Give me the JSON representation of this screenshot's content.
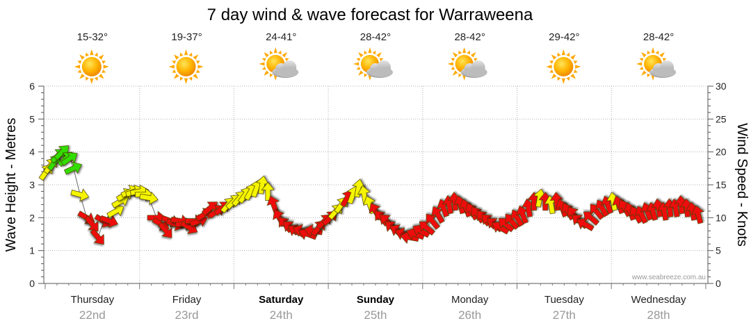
{
  "chart_data": {
    "type": "line",
    "title": "7 day wind & wave forecast for Warraweena",
    "ylabel_left": "Wave Height - Metres",
    "ylabel_right": "Wind Speed - Knots",
    "ylim_left": [
      0,
      6
    ],
    "ylim_right": [
      0,
      30
    ],
    "yticks_left": [
      "0",
      "1",
      "2",
      "3",
      "4",
      "5",
      "6"
    ],
    "yticks_right": [
      "0",
      "5",
      "10",
      "15",
      "20",
      "25",
      "30"
    ],
    "watermark": "www.seabreeze.com.au",
    "days": [
      {
        "name": "Thursday",
        "date": "22nd",
        "temp": "15-32°",
        "weather": "sunny",
        "bold": false
      },
      {
        "name": "Friday",
        "date": "23rd",
        "temp": "19-37°",
        "weather": "sunny",
        "bold": false
      },
      {
        "name": "Saturday",
        "date": "24th",
        "temp": "24-41°",
        "weather": "partly-cloudy",
        "bold": true
      },
      {
        "name": "Sunday",
        "date": "25th",
        "temp": "28-42°",
        "weather": "partly-cloudy",
        "bold": true
      },
      {
        "name": "Monday",
        "date": "26th",
        "temp": "28-42°",
        "weather": "partly-cloudy",
        "bold": false
      },
      {
        "name": "Tuesday",
        "date": "27th",
        "temp": "29-42°",
        "weather": "sunny",
        "bold": false
      },
      {
        "name": "Wednesday",
        "date": "28th",
        "temp": "28-42°",
        "weather": "partly-cloudy",
        "bold": false
      }
    ],
    "wind_unit": "knots",
    "wind_series": [
      {
        "t": 0.01,
        "kn": 17.0,
        "dir": 215,
        "color": "yellow"
      },
      {
        "t": 0.06,
        "kn": 18.0,
        "dir": 215,
        "color": "yellow"
      },
      {
        "t": 0.1,
        "kn": 18.5,
        "dir": 215,
        "color": "green"
      },
      {
        "t": 0.14,
        "kn": 19.5,
        "dir": 225,
        "color": "green"
      },
      {
        "t": 0.18,
        "kn": 20.0,
        "dir": 225,
        "color": "green"
      },
      {
        "t": 0.22,
        "kn": 19.0,
        "dir": 225,
        "color": "green"
      },
      {
        "t": 0.26,
        "kn": 19.0,
        "dir": 235,
        "color": "green"
      },
      {
        "t": 0.3,
        "kn": 17.5,
        "dir": 245,
        "color": "green"
      },
      {
        "t": 0.37,
        "kn": 13.5,
        "dir": 285,
        "color": "yellow"
      },
      {
        "t": 0.44,
        "kn": 10.0,
        "dir": 300,
        "color": "red"
      },
      {
        "t": 0.5,
        "kn": 9.0,
        "dir": 320,
        "color": "red"
      },
      {
        "t": 0.56,
        "kn": 7.0,
        "dir": 320,
        "color": "red"
      },
      {
        "t": 0.62,
        "kn": 9.5,
        "dir": 300,
        "color": "red"
      },
      {
        "t": 0.68,
        "kn": 9.5,
        "dir": 290,
        "color": "red"
      },
      {
        "t": 0.75,
        "kn": 11.0,
        "dir": 240,
        "color": "yellow"
      },
      {
        "t": 0.8,
        "kn": 12.5,
        "dir": 240,
        "color": "yellow"
      },
      {
        "t": 0.85,
        "kn": 13.5,
        "dir": 240,
        "color": "yellow"
      },
      {
        "t": 0.9,
        "kn": 14.0,
        "dir": 245,
        "color": "yellow"
      },
      {
        "t": 0.95,
        "kn": 14.0,
        "dir": 250,
        "color": "yellow"
      },
      {
        "t": 1.0,
        "kn": 14.0,
        "dir": 260,
        "color": "yellow"
      },
      {
        "t": 1.05,
        "kn": 13.5,
        "dir": 270,
        "color": "yellow"
      },
      {
        "t": 1.1,
        "kn": 13.0,
        "dir": 280,
        "color": "yellow"
      },
      {
        "t": 1.18,
        "kn": 10.0,
        "dir": 270,
        "color": "red"
      },
      {
        "t": 1.23,
        "kn": 9.0,
        "dir": 300,
        "color": "red"
      },
      {
        "t": 1.28,
        "kn": 8.0,
        "dir": 320,
        "color": "red"
      },
      {
        "t": 1.33,
        "kn": 9.5,
        "dir": 290,
        "color": "red"
      },
      {
        "t": 1.38,
        "kn": 9.0,
        "dir": 290,
        "color": "red"
      },
      {
        "t": 1.43,
        "kn": 9.5,
        "dir": 280,
        "color": "red"
      },
      {
        "t": 1.48,
        "kn": 9.0,
        "dir": 270,
        "color": "red"
      },
      {
        "t": 1.53,
        "kn": 8.5,
        "dir": 300,
        "color": "red"
      },
      {
        "t": 1.58,
        "kn": 9.5,
        "dir": 270,
        "color": "red"
      },
      {
        "t": 1.63,
        "kn": 9.5,
        "dir": 250,
        "color": "red"
      },
      {
        "t": 1.69,
        "kn": 10.5,
        "dir": 240,
        "color": "red"
      },
      {
        "t": 1.75,
        "kn": 11.5,
        "dir": 230,
        "color": "red"
      },
      {
        "t": 1.82,
        "kn": 11.0,
        "dir": 235,
        "color": "red"
      },
      {
        "t": 1.88,
        "kn": 11.5,
        "dir": 230,
        "color": "red"
      },
      {
        "t": 1.94,
        "kn": 12.0,
        "dir": 220,
        "color": "yellow"
      },
      {
        "t": 2.0,
        "kn": 12.5,
        "dir": 225,
        "color": "yellow"
      },
      {
        "t": 2.06,
        "kn": 13.0,
        "dir": 220,
        "color": "yellow"
      },
      {
        "t": 2.12,
        "kn": 13.5,
        "dir": 215,
        "color": "yellow"
      },
      {
        "t": 2.18,
        "kn": 14.0,
        "dir": 210,
        "color": "yellow"
      },
      {
        "t": 2.24,
        "kn": 14.5,
        "dir": 200,
        "color": "yellow"
      },
      {
        "t": 2.3,
        "kn": 15.0,
        "dir": 190,
        "color": "yellow"
      },
      {
        "t": 2.36,
        "kn": 14.0,
        "dir": 180,
        "color": "yellow"
      },
      {
        "t": 2.42,
        "kn": 12.0,
        "dir": 160,
        "color": "red"
      },
      {
        "t": 2.48,
        "kn": 10.0,
        "dir": 150,
        "color": "red"
      },
      {
        "t": 2.54,
        "kn": 9.0,
        "dir": 140,
        "color": "red"
      },
      {
        "t": 2.6,
        "kn": 8.5,
        "dir": 130,
        "color": "red"
      },
      {
        "t": 2.66,
        "kn": 8.0,
        "dir": 120,
        "color": "red"
      },
      {
        "t": 2.72,
        "kn": 8.0,
        "dir": 110,
        "color": "red"
      },
      {
        "t": 2.78,
        "kn": 7.5,
        "dir": 110,
        "color": "red"
      },
      {
        "t": 2.84,
        "kn": 8.0,
        "dir": 100,
        "color": "red"
      },
      {
        "t": 2.9,
        "kn": 8.5,
        "dir": 220,
        "color": "red"
      },
      {
        "t": 2.96,
        "kn": 9.5,
        "dir": 225,
        "color": "red"
      },
      {
        "t": 3.02,
        "kn": 10.0,
        "dir": 225,
        "color": "red"
      },
      {
        "t": 3.08,
        "kn": 11.0,
        "dir": 220,
        "color": "yellow"
      },
      {
        "t": 3.14,
        "kn": 12.0,
        "dir": 215,
        "color": "yellow"
      },
      {
        "t": 3.2,
        "kn": 13.0,
        "dir": 210,
        "color": "red"
      },
      {
        "t": 3.26,
        "kn": 13.5,
        "dir": 200,
        "color": "yellow"
      },
      {
        "t": 3.32,
        "kn": 14.5,
        "dir": 190,
        "color": "yellow"
      },
      {
        "t": 3.38,
        "kn": 13.5,
        "dir": 170,
        "color": "yellow"
      },
      {
        "t": 3.44,
        "kn": 12.0,
        "dir": 160,
        "color": "yellow"
      },
      {
        "t": 3.5,
        "kn": 11.0,
        "dir": 150,
        "color": "red"
      },
      {
        "t": 3.56,
        "kn": 10.0,
        "dir": 140,
        "color": "red"
      },
      {
        "t": 3.62,
        "kn": 9.5,
        "dir": 135,
        "color": "red"
      },
      {
        "t": 3.68,
        "kn": 8.5,
        "dir": 130,
        "color": "red"
      },
      {
        "t": 3.74,
        "kn": 8.0,
        "dir": 120,
        "color": "red"
      },
      {
        "t": 3.8,
        "kn": 7.5,
        "dir": 110,
        "color": "red"
      },
      {
        "t": 3.86,
        "kn": 7.0,
        "dir": 100,
        "color": "red"
      },
      {
        "t": 3.92,
        "kn": 7.5,
        "dir": 110,
        "color": "red"
      },
      {
        "t": 3.98,
        "kn": 8.0,
        "dir": 120,
        "color": "red"
      },
      {
        "t": 4.04,
        "kn": 8.5,
        "dir": 130,
        "color": "red"
      },
      {
        "t": 4.1,
        "kn": 9.5,
        "dir": 140,
        "color": "red"
      },
      {
        "t": 4.16,
        "kn": 10.5,
        "dir": 150,
        "color": "red"
      },
      {
        "t": 4.22,
        "kn": 11.5,
        "dir": 160,
        "color": "red"
      },
      {
        "t": 4.28,
        "kn": 12.0,
        "dir": 170,
        "color": "red"
      },
      {
        "t": 4.34,
        "kn": 12.5,
        "dir": 175,
        "color": "red"
      },
      {
        "t": 4.4,
        "kn": 12.0,
        "dir": 165,
        "color": "red"
      },
      {
        "t": 4.46,
        "kn": 11.5,
        "dir": 160,
        "color": "red"
      },
      {
        "t": 4.52,
        "kn": 11.0,
        "dir": 150,
        "color": "red"
      },
      {
        "t": 4.58,
        "kn": 10.5,
        "dir": 145,
        "color": "red"
      },
      {
        "t": 4.64,
        "kn": 10.0,
        "dir": 140,
        "color": "red"
      },
      {
        "t": 4.7,
        "kn": 9.5,
        "dir": 135,
        "color": "red"
      },
      {
        "t": 4.76,
        "kn": 9.0,
        "dir": 130,
        "color": "red"
      },
      {
        "t": 4.82,
        "kn": 8.5,
        "dir": 120,
        "color": "red"
      },
      {
        "t": 4.88,
        "kn": 9.0,
        "dir": 130,
        "color": "red"
      },
      {
        "t": 4.94,
        "kn": 9.5,
        "dir": 140,
        "color": "red"
      },
      {
        "t": 5.0,
        "kn": 10.0,
        "dir": 150,
        "color": "red"
      },
      {
        "t": 5.06,
        "kn": 10.5,
        "dir": 160,
        "color": "red"
      },
      {
        "t": 5.12,
        "kn": 11.5,
        "dir": 170,
        "color": "red"
      },
      {
        "t": 5.18,
        "kn": 12.5,
        "dir": 180,
        "color": "red"
      },
      {
        "t": 5.24,
        "kn": 13.0,
        "dir": 190,
        "color": "yellow"
      },
      {
        "t": 5.3,
        "kn": 12.5,
        "dir": 180,
        "color": "red"
      },
      {
        "t": 5.36,
        "kn": 12.0,
        "dir": 170,
        "color": "yellow"
      },
      {
        "t": 5.42,
        "kn": 12.5,
        "dir": 175,
        "color": "red"
      },
      {
        "t": 5.48,
        "kn": 11.5,
        "dir": 160,
        "color": "red"
      },
      {
        "t": 5.54,
        "kn": 11.0,
        "dir": 150,
        "color": "red"
      },
      {
        "t": 5.6,
        "kn": 10.5,
        "dir": 145,
        "color": "red"
      },
      {
        "t": 5.66,
        "kn": 9.5,
        "dir": 130,
        "color": "red"
      },
      {
        "t": 5.72,
        "kn": 9.0,
        "dir": 120,
        "color": "red"
      },
      {
        "t": 5.78,
        "kn": 10.0,
        "dir": 130,
        "color": "red"
      },
      {
        "t": 5.84,
        "kn": 11.0,
        "dir": 140,
        "color": "red"
      },
      {
        "t": 5.9,
        "kn": 11.5,
        "dir": 150,
        "color": "red"
      },
      {
        "t": 5.96,
        "kn": 12.0,
        "dir": 160,
        "color": "red"
      },
      {
        "t": 6.02,
        "kn": 12.5,
        "dir": 170,
        "color": "yellow"
      },
      {
        "t": 6.08,
        "kn": 12.0,
        "dir": 160,
        "color": "red"
      },
      {
        "t": 6.14,
        "kn": 11.5,
        "dir": 150,
        "color": "red"
      },
      {
        "t": 6.2,
        "kn": 11.0,
        "dir": 160,
        "color": "red"
      },
      {
        "t": 6.26,
        "kn": 10.5,
        "dir": 150,
        "color": "red"
      },
      {
        "t": 6.32,
        "kn": 10.5,
        "dir": 155,
        "color": "red"
      },
      {
        "t": 6.38,
        "kn": 11.0,
        "dir": 160,
        "color": "red"
      },
      {
        "t": 6.44,
        "kn": 11.0,
        "dir": 165,
        "color": "red"
      },
      {
        "t": 6.5,
        "kn": 11.5,
        "dir": 170,
        "color": "red"
      },
      {
        "t": 6.56,
        "kn": 11.0,
        "dir": 170,
        "color": "red"
      },
      {
        "t": 6.62,
        "kn": 11.5,
        "dir": 175,
        "color": "red"
      },
      {
        "t": 6.68,
        "kn": 11.5,
        "dir": 170,
        "color": "red"
      },
      {
        "t": 6.74,
        "kn": 12.0,
        "dir": 175,
        "color": "red"
      },
      {
        "t": 6.8,
        "kn": 11.5,
        "dir": 175,
        "color": "red"
      },
      {
        "t": 6.86,
        "kn": 11.0,
        "dir": 170,
        "color": "red"
      },
      {
        "t": 6.92,
        "kn": 10.5,
        "dir": 165,
        "color": "red"
      }
    ],
    "colors": {
      "red": "#ee1111",
      "yellow": "#f5f500",
      "green": "#33dd00",
      "grid": "#b0b0b0",
      "sun": "#ffa800",
      "cloud": "#b8b8b8"
    }
  }
}
